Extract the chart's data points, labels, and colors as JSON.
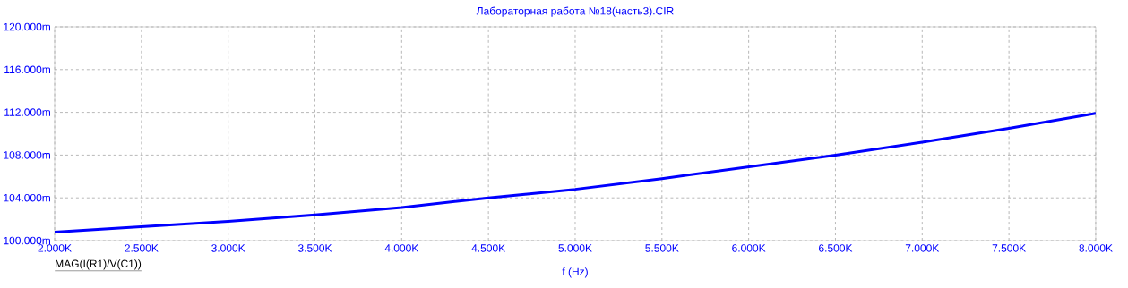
{
  "chart_data": {
    "type": "line",
    "title": "Лабораторная работа №18(часть3).CIR",
    "xlabel": "f (Hz)",
    "annotations": [
      "MAG(I(R1)/V(C1))"
    ],
    "x": [
      2000,
      2500,
      3000,
      3500,
      4000,
      4500,
      5000,
      5500,
      6000,
      6500,
      7000,
      7500,
      8000
    ],
    "series": [
      {
        "color": "#0000ff",
        "values": [
          100.8,
          101.3,
          101.8,
          102.4,
          103.1,
          104.0,
          104.8,
          105.8,
          106.9,
          108.0,
          109.2,
          110.5,
          111.9
        ]
      }
    ],
    "xlim": [
      2000,
      8000
    ],
    "ylim": [
      100,
      120
    ],
    "xticks": [
      {
        "value": 2000,
        "label": "2.000K"
      },
      {
        "value": 2500,
        "label": "2.500K"
      },
      {
        "value": 3000,
        "label": "3.000K"
      },
      {
        "value": 3500,
        "label": "3.500K"
      },
      {
        "value": 4000,
        "label": "4.000K"
      },
      {
        "value": 4500,
        "label": "4.500K"
      },
      {
        "value": 5000,
        "label": "5.000K"
      },
      {
        "value": 5500,
        "label": "5.500K"
      },
      {
        "value": 6000,
        "label": "6.000K"
      },
      {
        "value": 6500,
        "label": "6.500K"
      },
      {
        "value": 7000,
        "label": "7.000K"
      },
      {
        "value": 7500,
        "label": "7.500K"
      },
      {
        "value": 8000,
        "label": "8.000K"
      }
    ],
    "yticks": [
      {
        "value": 100,
        "label": "100.000m"
      },
      {
        "value": 104,
        "label": "104.000m"
      },
      {
        "value": 108,
        "label": "108.000m"
      },
      {
        "value": 112,
        "label": "112.000m"
      },
      {
        "value": 116,
        "label": "116.000m"
      },
      {
        "value": 120,
        "label": "120.000m"
      }
    ],
    "grid": true,
    "marker": "none",
    "line_style": "solid"
  }
}
